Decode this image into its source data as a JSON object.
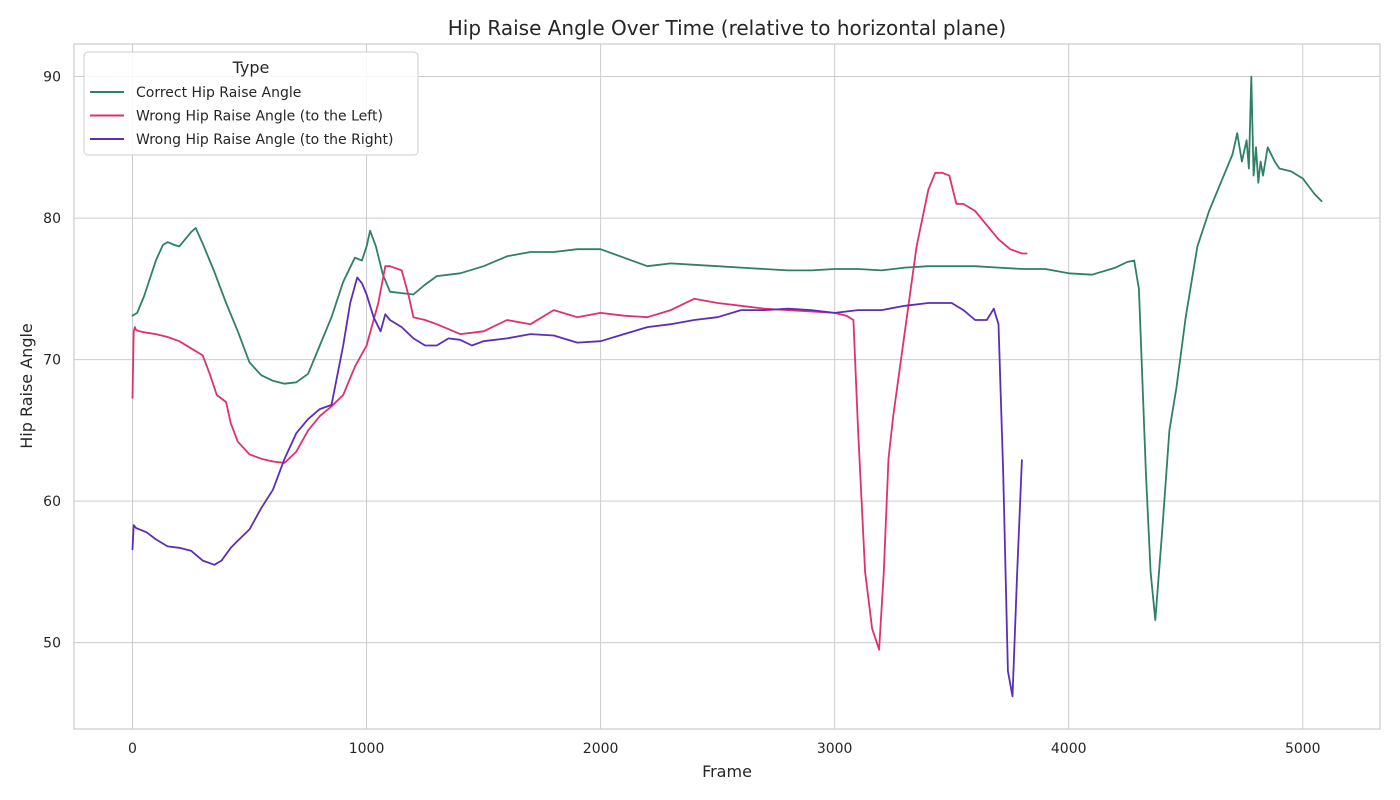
{
  "chart_data": {
    "type": "line",
    "title": "Hip Raise Angle Over Time (relative to horizontal plane)",
    "xlabel": "Frame",
    "ylabel": "Hip Raise Angle",
    "xlim": [
      -250,
      5330
    ],
    "ylim": [
      43.9,
      92.3
    ],
    "xticks": [
      0,
      1000,
      2000,
      3000,
      4000,
      5000
    ],
    "yticks": [
      50,
      60,
      70,
      80,
      90
    ],
    "grid": true,
    "legend": {
      "title": "Type",
      "placement": "top-left"
    },
    "series": [
      {
        "name": "Correct Hip Raise Angle",
        "color": "#2e8067",
        "x": [
          0,
          20,
          50,
          100,
          130,
          150,
          180,
          200,
          250,
          270,
          300,
          350,
          400,
          450,
          500,
          550,
          600,
          650,
          700,
          750,
          800,
          850,
          900,
          950,
          980,
          1000,
          1015,
          1040,
          1070,
          1100,
          1150,
          1200,
          1250,
          1300,
          1400,
          1500,
          1600,
          1700,
          1800,
          1900,
          2000,
          2100,
          2200,
          2300,
          2400,
          2500,
          2600,
          2700,
          2800,
          2900,
          3000,
          3100,
          3200,
          3300,
          3400,
          3500,
          3600,
          3700,
          3800,
          3900,
          4000,
          4100,
          4200,
          4250,
          4280,
          4300,
          4330,
          4350,
          4370,
          4400,
          4430,
          4460,
          4500,
          4550,
          4600,
          4650,
          4700,
          4720,
          4740,
          4760,
          4770,
          4780,
          4790,
          4800,
          4810,
          4820,
          4830,
          4850,
          4880,
          4900,
          4950,
          5000,
          5050,
          5080
        ],
        "values": [
          73.1,
          73.3,
          74.5,
          77.0,
          78.1,
          78.3,
          78.1,
          78.0,
          79.0,
          79.3,
          78.2,
          76.2,
          74.0,
          72.0,
          69.8,
          68.9,
          68.5,
          68.3,
          68.4,
          69.0,
          71.0,
          73.0,
          75.5,
          77.2,
          77.0,
          78.0,
          79.1,
          78.0,
          76.0,
          74.8,
          74.7,
          74.6,
          75.3,
          75.9,
          76.1,
          76.6,
          77.3,
          77.6,
          77.6,
          77.8,
          77.8,
          77.2,
          76.6,
          76.8,
          76.7,
          76.6,
          76.5,
          76.4,
          76.3,
          76.3,
          76.4,
          76.4,
          76.3,
          76.5,
          76.6,
          76.6,
          76.6,
          76.5,
          76.4,
          76.4,
          76.1,
          76.0,
          76.5,
          76.9,
          77.0,
          75.0,
          62.0,
          55.0,
          51.6,
          58.0,
          65.0,
          68.0,
          73.0,
          78.0,
          80.5,
          82.5,
          84.5,
          86.0,
          84.0,
          85.5,
          83.5,
          90.0,
          83.0,
          85.0,
          82.5,
          84.0,
          83.0,
          85.0,
          84.0,
          83.5,
          83.3,
          82.8,
          81.7,
          81.2
        ]
      },
      {
        "name": "Wrong Hip Raise Angle (to the Left)",
        "color": "#e0306e",
        "x": [
          0,
          5,
          10,
          15,
          30,
          60,
          100,
          150,
          200,
          250,
          300,
          330,
          360,
          400,
          420,
          450,
          500,
          550,
          600,
          650,
          700,
          750,
          800,
          850,
          900,
          950,
          1000,
          1050,
          1080,
          1100,
          1150,
          1180,
          1200,
          1250,
          1300,
          1400,
          1500,
          1600,
          1700,
          1800,
          1900,
          2000,
          2100,
          2200,
          2300,
          2400,
          2500,
          2600,
          2700,
          2800,
          2900,
          3000,
          3050,
          3080,
          3100,
          3130,
          3160,
          3190,
          3210,
          3230,
          3250,
          3300,
          3350,
          3400,
          3430,
          3460,
          3490,
          3520,
          3550,
          3600,
          3650,
          3700,
          3750,
          3800,
          3820
        ],
        "values": [
          67.3,
          72.0,
          72.3,
          72.1,
          72.0,
          71.9,
          71.8,
          71.6,
          71.3,
          70.8,
          70.3,
          69.0,
          67.5,
          67.0,
          65.5,
          64.2,
          63.3,
          63.0,
          62.8,
          62.7,
          63.5,
          65.0,
          66.0,
          66.7,
          67.5,
          69.5,
          71.0,
          74.0,
          76.6,
          76.6,
          76.3,
          74.5,
          73.0,
          72.8,
          72.5,
          71.8,
          72.0,
          72.8,
          72.5,
          73.5,
          73.0,
          73.3,
          73.1,
          73.0,
          73.5,
          74.3,
          74.0,
          73.8,
          73.6,
          73.5,
          73.4,
          73.3,
          73.1,
          72.8,
          65.0,
          55.0,
          51.0,
          49.5,
          55.0,
          63.0,
          66.0,
          72.0,
          78.0,
          82.0,
          83.2,
          83.2,
          83.0,
          81.0,
          81.0,
          80.5,
          79.5,
          78.5,
          77.8,
          77.5,
          77.5
        ]
      },
      {
        "name": "Wrong Hip Raise Angle (to the Right)",
        "color": "#5b2db8",
        "x": [
          0,
          5,
          15,
          30,
          60,
          100,
          150,
          200,
          250,
          300,
          350,
          380,
          420,
          450,
          500,
          550,
          600,
          650,
          700,
          750,
          800,
          850,
          900,
          930,
          960,
          980,
          1000,
          1030,
          1060,
          1080,
          1100,
          1150,
          1200,
          1250,
          1300,
          1350,
          1400,
          1450,
          1500,
          1600,
          1700,
          1800,
          1900,
          2000,
          2100,
          2200,
          2300,
          2400,
          2500,
          2600,
          2700,
          2800,
          2900,
          3000,
          3100,
          3200,
          3300,
          3400,
          3500,
          3550,
          3600,
          3650,
          3680,
          3700,
          3720,
          3740,
          3760,
          3780,
          3800
        ],
        "values": [
          56.6,
          58.3,
          58.1,
          58.0,
          57.8,
          57.3,
          56.8,
          56.7,
          56.5,
          55.8,
          55.5,
          55.8,
          56.7,
          57.2,
          58.0,
          59.5,
          60.8,
          63.0,
          64.8,
          65.8,
          66.5,
          66.8,
          71.0,
          74.0,
          75.8,
          75.4,
          74.6,
          73.0,
          72.0,
          73.2,
          72.8,
          72.3,
          71.5,
          71.0,
          71.0,
          71.5,
          71.4,
          71.0,
          71.3,
          71.5,
          71.8,
          71.7,
          71.2,
          71.3,
          71.8,
          72.3,
          72.5,
          72.8,
          73.0,
          73.5,
          73.5,
          73.6,
          73.5,
          73.3,
          73.5,
          73.5,
          73.8,
          74.0,
          74.0,
          73.5,
          72.8,
          72.8,
          73.6,
          72.5,
          62.0,
          48.0,
          46.2,
          55.0,
          62.9
        ]
      }
    ]
  }
}
